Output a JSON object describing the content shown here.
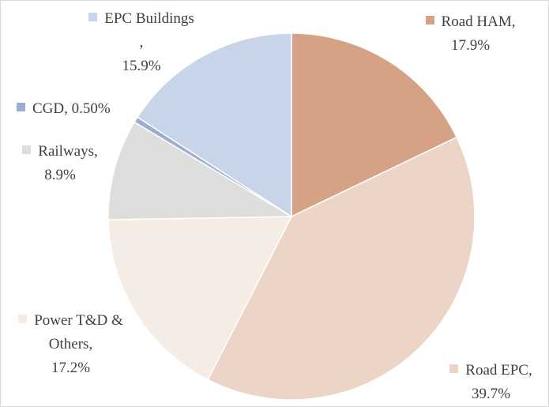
{
  "chart_data": {
    "type": "pie",
    "categories": [
      "Road HAM,",
      "Road EPC,",
      "Power T&D & Others,",
      "Railways,",
      "CGD,",
      "EPC Buildings ,"
    ],
    "values": [
      17.9,
      39.7,
      17.2,
      8.9,
      0.5,
      15.9
    ],
    "value_labels": [
      "17.9%",
      "39.7%",
      "17.2%",
      "8.9%",
      "0.50%",
      "15.9%"
    ],
    "colors": [
      "#d5a285",
      "#ecd4c7",
      "#f6ece6",
      "#dddddb",
      "#9badd3",
      "#c8d4e7"
    ]
  }
}
